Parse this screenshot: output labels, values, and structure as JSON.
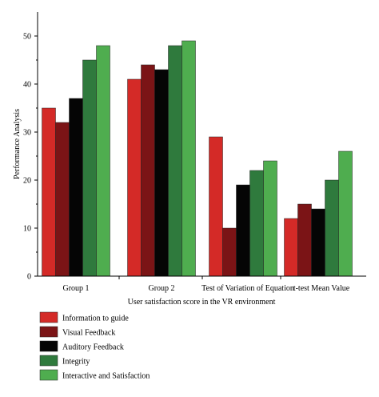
{
  "chart_data": {
    "type": "bar",
    "title": "",
    "xlabel": "User satisfaction score in the VR environment",
    "ylabel": "Performance Analysis",
    "ylim": [
      0,
      55
    ],
    "yticks": [
      "0",
      "10",
      "20",
      "30",
      "40",
      "50"
    ],
    "ytick_values": [
      0,
      10,
      20,
      30,
      40,
      50
    ],
    "grid": false,
    "legend_position": "bottom-left",
    "categories": [
      "Group 1",
      "Group 2",
      "Test of Variation of Equation",
      "t-test Mean Value"
    ],
    "series": [
      {
        "name": "Information to guide",
        "color": "#d42a27",
        "values": [
          35,
          41,
          29,
          12
        ]
      },
      {
        "name": "Visual Feedback",
        "color": "#7b1416",
        "values": [
          32,
          44,
          10,
          15
        ]
      },
      {
        "name": "Auditory Feedback",
        "color": "#050505",
        "values": [
          37,
          43,
          19,
          14
        ]
      },
      {
        "name": "Integrity",
        "color": "#2f7a3d",
        "values": [
          45,
          48,
          22,
          20
        ]
      },
      {
        "name": "Interactive and Satisfaction",
        "color": "#4fad4f",
        "values": [
          48,
          49,
          24,
          26
        ]
      }
    ]
  }
}
